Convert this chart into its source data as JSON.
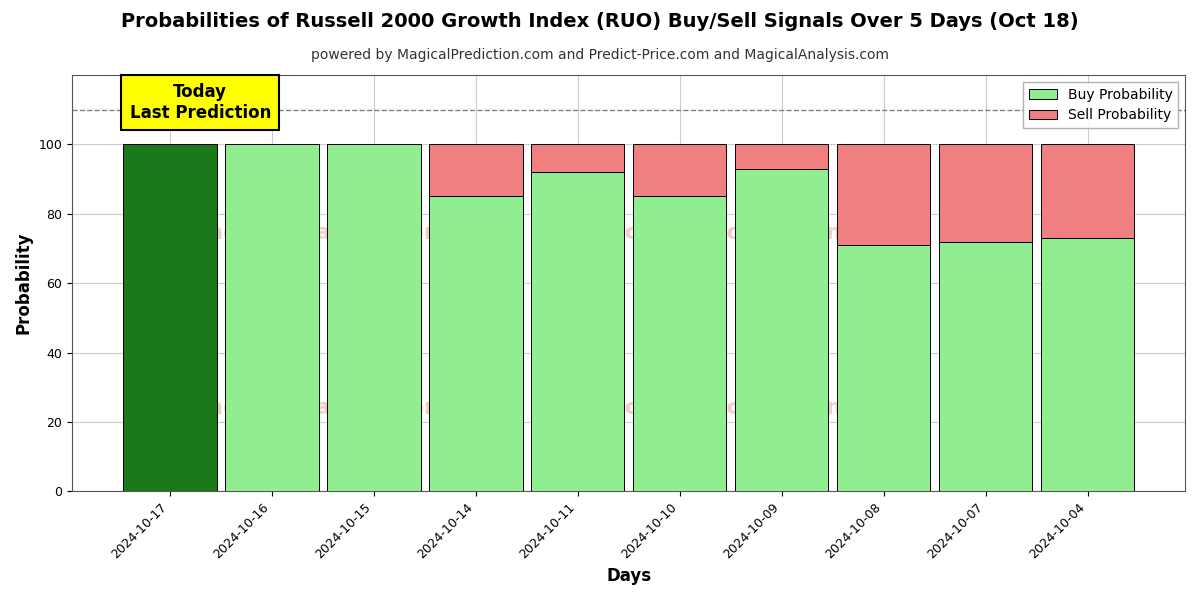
{
  "title": "Probabilities of Russell 2000 Growth Index (RUO) Buy/Sell Signals Over 5 Days (Oct 18)",
  "subtitle": "powered by MagicalPrediction.com and Predict-Price.com and MagicalAnalysis.com",
  "xlabel": "Days",
  "ylabel": "Probability",
  "dates": [
    "2024-10-17",
    "2024-10-16",
    "2024-10-15",
    "2024-10-14",
    "2024-10-11",
    "2024-10-10",
    "2024-10-09",
    "2024-10-08",
    "2024-10-07",
    "2024-10-04"
  ],
  "buy_probs": [
    100,
    100,
    100,
    85,
    92,
    85,
    93,
    71,
    72,
    73
  ],
  "sell_probs": [
    0,
    0,
    0,
    15,
    8,
    15,
    7,
    29,
    28,
    27
  ],
  "first_bar_color": "#1a7a1a",
  "buy_color": "#90ee90",
  "sell_color": "#f08080",
  "today_box_color": "#ffff00",
  "today_label": "Today\nLast Prediction",
  "legend_buy": "Buy Probability",
  "legend_sell": "Sell Probability",
  "ylim": [
    0,
    120
  ],
  "dashed_line_y": 110,
  "background_color": "#ffffff",
  "grid_color": "#cccccc",
  "bar_width": 0.92,
  "title_fontsize": 14,
  "subtitle_fontsize": 10,
  "axis_label_fontsize": 12,
  "tick_fontsize": 9,
  "legend_fontsize": 10
}
